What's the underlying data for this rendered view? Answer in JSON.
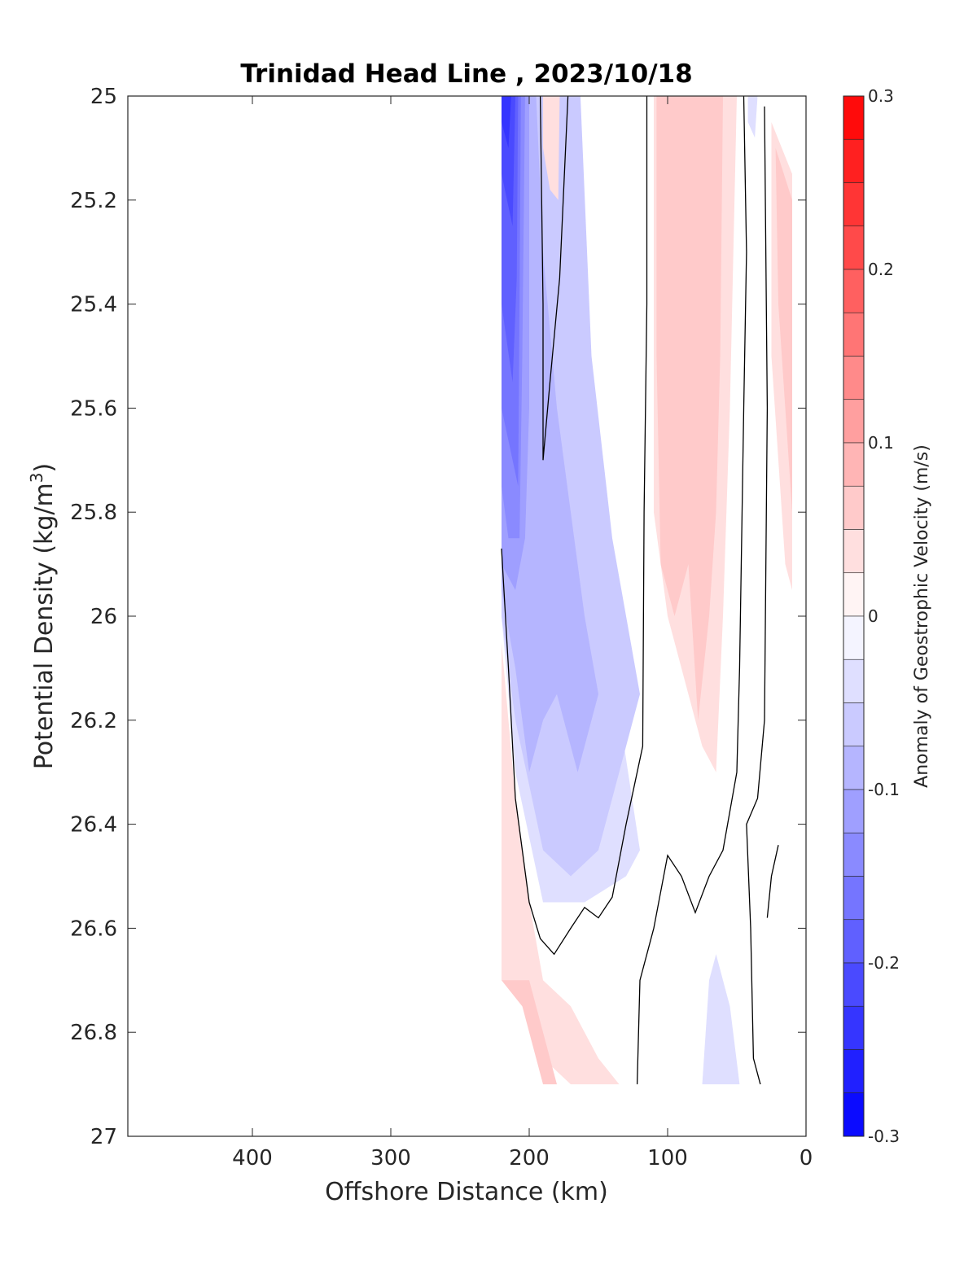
{
  "chart_data": {
    "type": "contour",
    "title": "Trinidad Head Line , 2023/10/18",
    "xlabel": "Offshore Distance (km)",
    "ylabel": "Potential Density (kg/m",
    "ylabel_sup": "3",
    "ylabel_close": ")",
    "xlim": [
      490,
      0
    ],
    "ylim": [
      25,
      27
    ],
    "x_ticks": [
      400,
      300,
      200,
      100,
      0
    ],
    "x_tick_labels": [
      "400",
      "300",
      "200",
      "100",
      "0"
    ],
    "y_ticks": [
      25,
      25.2,
      25.4,
      25.6,
      25.8,
      26,
      26.2,
      26.4,
      26.6,
      26.8,
      27
    ],
    "y_tick_labels": [
      "25",
      "25.2",
      "25.4",
      "25.6",
      "25.8",
      "26",
      "26.2",
      "26.4",
      "26.6",
      "26.8",
      "27"
    ],
    "colorbar": {
      "label": "Anomaly of Geostrophic Velocity (m/s)",
      "min": -0.3,
      "max": 0.3,
      "levels": 24,
      "ticks": [
        -0.3,
        -0.2,
        -0.1,
        0,
        0.1,
        0.2,
        0.3
      ],
      "tick_labels": [
        "-0.3",
        "-0.2",
        "-0.1",
        "0",
        "0.1",
        "0.2",
        "0.3"
      ],
      "low_color": "#0000ff",
      "mid_color": "#ffffff",
      "high_color": "#ff0000"
    },
    "filled_regions": [
      {
        "v": -0.0375,
        "pts": [
          [
            220,
            25
          ],
          [
            170,
            25
          ],
          [
            160,
            25.6
          ],
          [
            150,
            25.9
          ],
          [
            140,
            26.1
          ],
          [
            120,
            26.45
          ],
          [
            130,
            26.5
          ],
          [
            160,
            26.55
          ],
          [
            190,
            26.55
          ],
          [
            210,
            26.3
          ],
          [
            220,
            26
          ]
        ]
      },
      {
        "v": -0.0625,
        "pts": [
          [
            220,
            25
          ],
          [
            163,
            25
          ],
          [
            155,
            25.5
          ],
          [
            140,
            25.85
          ],
          [
            120,
            26.15
          ],
          [
            140,
            26.35
          ],
          [
            150,
            26.45
          ],
          [
            170,
            26.5
          ],
          [
            190,
            26.45
          ],
          [
            210,
            26.2
          ],
          [
            220,
            26
          ]
        ]
      },
      {
        "v": -0.0875,
        "pts": [
          [
            220,
            25
          ],
          [
            195,
            25
          ],
          [
            190,
            25.3
          ],
          [
            180,
            25.6
          ],
          [
            170,
            25.8
          ],
          [
            160,
            26
          ],
          [
            150,
            26.15
          ],
          [
            165,
            26.3
          ],
          [
            180,
            26.15
          ],
          [
            190,
            26.2
          ],
          [
            200,
            26.3
          ],
          [
            210,
            26.1
          ],
          [
            220,
            25.95
          ]
        ]
      },
      {
        "v": -0.1125,
        "pts": [
          [
            220,
            25
          ],
          [
            200,
            25
          ],
          [
            200,
            25.6
          ],
          [
            203,
            25.85
          ],
          [
            210,
            25.95
          ],
          [
            220,
            25.9
          ]
        ]
      },
      {
        "v": -0.1375,
        "pts": [
          [
            220,
            25
          ],
          [
            203,
            25
          ],
          [
            205,
            25.5
          ],
          [
            207,
            25.85
          ],
          [
            215,
            25.85
          ],
          [
            220,
            25.75
          ]
        ]
      },
      {
        "v": -0.1625,
        "pts": [
          [
            220,
            25
          ],
          [
            206,
            25
          ],
          [
            207,
            25.4
          ],
          [
            208,
            25.75
          ],
          [
            220,
            25.6
          ]
        ]
      },
      {
        "v": -0.1875,
        "pts": [
          [
            220,
            25
          ],
          [
            208,
            25
          ],
          [
            209,
            25.35
          ],
          [
            212,
            25.55
          ],
          [
            220,
            25.4
          ]
        ]
      },
      {
        "v": -0.2125,
        "pts": [
          [
            220,
            25
          ],
          [
            210,
            25
          ],
          [
            212,
            25.25
          ],
          [
            220,
            25.15
          ]
        ]
      },
      {
        "v": -0.2375,
        "pts": [
          [
            220,
            25
          ],
          [
            213,
            25
          ],
          [
            215,
            25.1
          ],
          [
            220,
            25.05
          ]
        ]
      },
      {
        "v": 0.0375,
        "pts": [
          [
            190,
            25
          ],
          [
            178,
            25
          ],
          [
            179,
            25.2
          ],
          [
            185,
            25.18
          ],
          [
            190,
            25.1
          ]
        ]
      },
      {
        "v": 0.0375,
        "pts": [
          [
            110,
            25
          ],
          [
            50,
            25
          ],
          [
            55,
            25.6
          ],
          [
            60,
            26
          ],
          [
            65,
            26.3
          ],
          [
            75,
            26.25
          ],
          [
            90,
            26.1
          ],
          [
            100,
            26
          ],
          [
            110,
            25.8
          ]
        ]
      },
      {
        "v": 0.0625,
        "pts": [
          [
            108,
            25
          ],
          [
            60,
            25
          ],
          [
            62,
            25.5
          ],
          [
            65,
            25.8
          ],
          [
            70,
            26
          ],
          [
            78,
            26.2
          ],
          [
            85,
            25.9
          ],
          [
            95,
            26
          ],
          [
            105,
            25.9
          ],
          [
            108,
            25.5
          ]
        ]
      },
      {
        "v": 0.0625,
        "pts": [
          [
            97,
            25
          ],
          [
            92,
            25
          ],
          [
            93,
            25.5
          ],
          [
            97,
            25.4
          ]
        ]
      },
      {
        "v": 0.0375,
        "pts": [
          [
            25,
            25.05
          ],
          [
            10,
            25.15
          ],
          [
            10,
            25.95
          ],
          [
            15,
            25.9
          ],
          [
            20,
            25.7
          ],
          [
            25,
            25.5
          ]
        ]
      },
      {
        "v": 0.0625,
        "pts": [
          [
            22,
            25.1
          ],
          [
            10,
            25.2
          ],
          [
            10,
            25.8
          ],
          [
            15,
            25.6
          ],
          [
            20,
            25.4
          ]
        ]
      },
      {
        "v": 0.0375,
        "pts": [
          [
            220,
            26.05
          ],
          [
            210,
            26.35
          ],
          [
            200,
            26.55
          ],
          [
            190,
            26.7
          ],
          [
            170,
            26.75
          ],
          [
            150,
            26.85
          ],
          [
            135,
            26.9
          ],
          [
            170,
            26.9
          ],
          [
            190,
            26.85
          ],
          [
            205,
            26.75
          ],
          [
            220,
            26.7
          ]
        ]
      },
      {
        "v": 0.0625,
        "pts": [
          [
            220,
            26.7
          ],
          [
            200,
            26.7
          ],
          [
            190,
            26.8
          ],
          [
            180,
            26.9
          ],
          [
            190,
            26.9
          ],
          [
            205,
            26.75
          ],
          [
            220,
            26.7
          ]
        ]
      },
      {
        "v": -0.0375,
        "pts": [
          [
            75,
            26.9
          ],
          [
            48,
            26.9
          ],
          [
            55,
            26.75
          ],
          [
            65,
            26.65
          ],
          [
            70,
            26.7
          ]
        ]
      },
      {
        "v": -0.0375,
        "pts": [
          [
            42,
            25
          ],
          [
            35,
            25
          ],
          [
            37,
            25.08
          ],
          [
            42,
            25.05
          ]
        ]
      }
    ],
    "contour_lines": [
      [
        [
          192,
          25
        ],
        [
          190,
          25.4
        ],
        [
          190,
          25.7
        ],
        [
          185,
          25.55
        ],
        [
          178,
          25.35
        ],
        [
          172,
          25
        ]
      ],
      [
        [
          220,
          25.87
        ],
        [
          215,
          26.1
        ],
        [
          210,
          26.35
        ],
        [
          205,
          26.45
        ],
        [
          200,
          26.55
        ],
        [
          192,
          26.62
        ],
        [
          182,
          26.65
        ],
        [
          170,
          26.6
        ],
        [
          160,
          26.56
        ],
        [
          150,
          26.58
        ],
        [
          140,
          26.54
        ],
        [
          130,
          26.4
        ],
        [
          118,
          26.25
        ],
        [
          117,
          25.8
        ],
        [
          115,
          25.4
        ],
        [
          115,
          25
        ]
      ],
      [
        [
          122,
          26.9
        ],
        [
          120,
          26.7
        ],
        [
          110,
          26.6
        ],
        [
          100,
          26.46
        ],
        [
          90,
          26.5
        ],
        [
          80,
          26.57
        ],
        [
          70,
          26.5
        ],
        [
          60,
          26.45
        ],
        [
          50,
          26.3
        ],
        [
          48,
          26.1
        ],
        [
          45,
          25.6
        ],
        [
          43,
          25.3
        ],
        [
          45,
          25
        ]
      ],
      [
        [
          33,
          26.9
        ],
        [
          38,
          26.85
        ],
        [
          40,
          26.6
        ],
        [
          43,
          26.4
        ],
        [
          35,
          26.35
        ],
        [
          30,
          26.2
        ],
        [
          28,
          25.6
        ],
        [
          30,
          25.02
        ]
      ],
      [
        [
          28,
          26.58
        ],
        [
          25,
          26.5
        ],
        [
          20,
          26.44
        ]
      ]
    ]
  }
}
